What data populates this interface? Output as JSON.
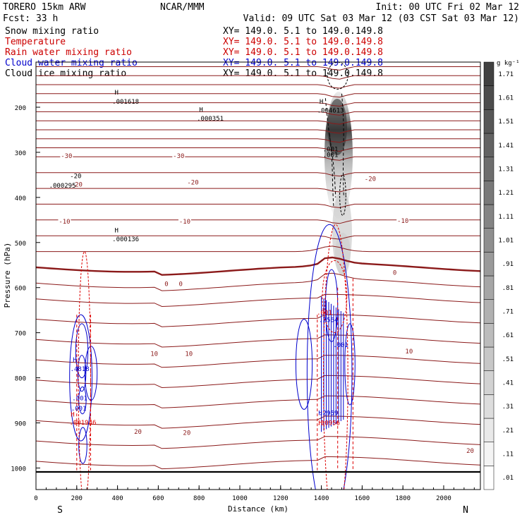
{
  "header": {
    "model": "TORERO  15km ARW",
    "center": "NCAR/MMM",
    "init": "Init: 00 UTC Fri 02 Mar 12",
    "fcst": "Fcst:   33 h",
    "valid": "Valid: 09 UTC Sat 03 Mar 12 (03 CST Sat 03 Mar 12)"
  },
  "fields": [
    {
      "name": "Snow mixing ratio",
      "xy": "",
      "color": "#000000"
    },
    {
      "name": "Temperature",
      "xy": "XY= 149.0.  5.1 to 149.0.149.8",
      "color": "#cc0000"
    },
    {
      "name": "Rain water mixing ratio",
      "xy": "XY= 149.0.  5.1 to 149.0.149.8",
      "color": "#cc0000"
    },
    {
      "name": "Cloud water mixing ratio",
      "xy": "XY= 149.0.  5.1 to 149.0.149.8",
      "color": "#0000cc"
    },
    {
      "name": "Cloud ice mixing ratio",
      "xy": "XY= 149.0.  5.1 to 149.0.149.8",
      "color": "#000000"
    }
  ],
  "first_xy": "XY= 149.0.  5.1 to 149.0.149.8",
  "colors": {
    "temperature": "#8b1a1a",
    "rain": "#dd0000",
    "cloud_water": "#0000cc",
    "ice": "#000000"
  },
  "chart_data": {
    "type": "cross-section",
    "xlabel": "Distance (km)",
    "ylabel": "Pressure (hPa)",
    "xlim": [
      0,
      2180
    ],
    "ylim": [
      1050,
      100
    ],
    "x_ticks": [
      0,
      200,
      400,
      600,
      800,
      1000,
      1200,
      1400,
      1600,
      1800,
      2000
    ],
    "y_ticks": [
      200,
      300,
      400,
      500,
      600,
      700,
      800,
      900,
      1000
    ],
    "endpoints": {
      "left": "S",
      "right": "N"
    },
    "colorbar": {
      "unit": "g kg⁻¹",
      "ticks": [
        ".01",
        ".11",
        ".21",
        ".31",
        ".41",
        ".51",
        ".61",
        ".71",
        ".81",
        ".91",
        "1.01",
        "1.11",
        "1.21",
        "1.31",
        "1.41",
        "1.51",
        "1.61",
        "1.71"
      ]
    },
    "temperature_contours": [
      {
        "label": "-30",
        "p": 330
      },
      {
        "label": "-20",
        "p": 370
      },
      {
        "label": "-10",
        "p": 450
      },
      {
        "label": "0",
        "p": 570
      },
      {
        "label": "10",
        "p": 750
      },
      {
        "label": "20",
        "p": 915
      }
    ],
    "temperature_labels": [
      {
        "text": "-30",
        "x": 150,
        "p": 306
      },
      {
        "text": "-30",
        "x": 700,
        "p": 306
      },
      {
        "text": "-20",
        "x": 200,
        "p": 370
      },
      {
        "text": "-20",
        "x": 770,
        "p": 365
      },
      {
        "text": "-20",
        "x": 1640,
        "p": 357
      },
      {
        "text": "-10",
        "x": 140,
        "p": 452
      },
      {
        "text": "-10",
        "x": 730,
        "p": 452
      },
      {
        "text": "-10",
        "x": 1800,
        "p": 450
      },
      {
        "text": "0",
        "x": 640,
        "p": 590
      },
      {
        "text": "0",
        "x": 710,
        "p": 590
      },
      {
        "text": "0",
        "x": 1760,
        "p": 565
      },
      {
        "text": "10",
        "x": 580,
        "p": 745
      },
      {
        "text": "10",
        "x": 750,
        "p": 745
      },
      {
        "text": "10",
        "x": 1830,
        "p": 740
      },
      {
        "text": "20",
        "x": 500,
        "p": 918
      },
      {
        "text": "20",
        "x": 740,
        "p": 920
      },
      {
        "text": "20",
        "x": 2130,
        "p": 960
      }
    ],
    "annotations": [
      {
        "text": "H",
        "x": 395,
        "p": 172,
        "kind": "ice"
      },
      {
        "text": ".001618",
        "x": 440,
        "p": 192,
        "kind": "ice"
      },
      {
        "text": "H",
        "x": 810,
        "p": 210,
        "kind": "ice"
      },
      {
        "text": ".000351",
        "x": 855,
        "p": 230,
        "kind": "ice"
      },
      {
        "text": "H",
        "x": 1400,
        "p": 192,
        "kind": "ice"
      },
      {
        "text": ".004613",
        "x": 1445,
        "p": 212,
        "kind": "ice"
      },
      {
        "text": ".001",
        "x": 1445,
        "p": 298,
        "kind": "ice"
      },
      {
        "text": ".001",
        "x": 1445,
        "p": 310,
        "kind": "ice"
      },
      {
        "text": "-20",
        "x": 195,
        "p": 357,
        "kind": "ice"
      },
      {
        "text": ".000295",
        "x": 130,
        "p": 378,
        "kind": "ice"
      },
      {
        "text": "H",
        "x": 395,
        "p": 478,
        "kind": "ice"
      },
      {
        "text": ".000136",
        "x": 440,
        "p": 497,
        "kind": "ice"
      },
      {
        "text": "H",
        "x": 190,
        "p": 765,
        "kind": "cloud"
      },
      {
        "text": ".4818",
        "x": 215,
        "p": 785,
        "kind": "cloud"
      },
      {
        "text": ".001",
        "x": 215,
        "p": 850,
        "kind": "cloud"
      },
      {
        "text": ".001",
        "x": 210,
        "p": 873,
        "kind": "cloud"
      },
      {
        "text": "H",
        "x": 180,
        "p": 886,
        "kind": "rain"
      },
      {
        "text": ".001946",
        "x": 230,
        "p": 904,
        "kind": "rain"
      },
      {
        "text": ".001",
        "x": 1415,
        "p": 660,
        "kind": "rain"
      },
      {
        "text": ".2564",
        "x": 1435,
        "p": 676,
        "kind": "cloud"
      },
      {
        "text": ".001",
        "x": 1495,
        "p": 732,
        "kind": "cloud"
      },
      {
        "text": "H",
        "x": 1395,
        "p": 883,
        "kind": "cloud"
      },
      {
        "text": ".2959",
        "x": 1435,
        "p": 883,
        "kind": "cloud"
      },
      {
        "text": "H",
        "x": 1395,
        "p": 905,
        "kind": "rain"
      },
      {
        "text": ".10956",
        "x": 1435,
        "p": 905,
        "kind": "rain"
      }
    ]
  }
}
